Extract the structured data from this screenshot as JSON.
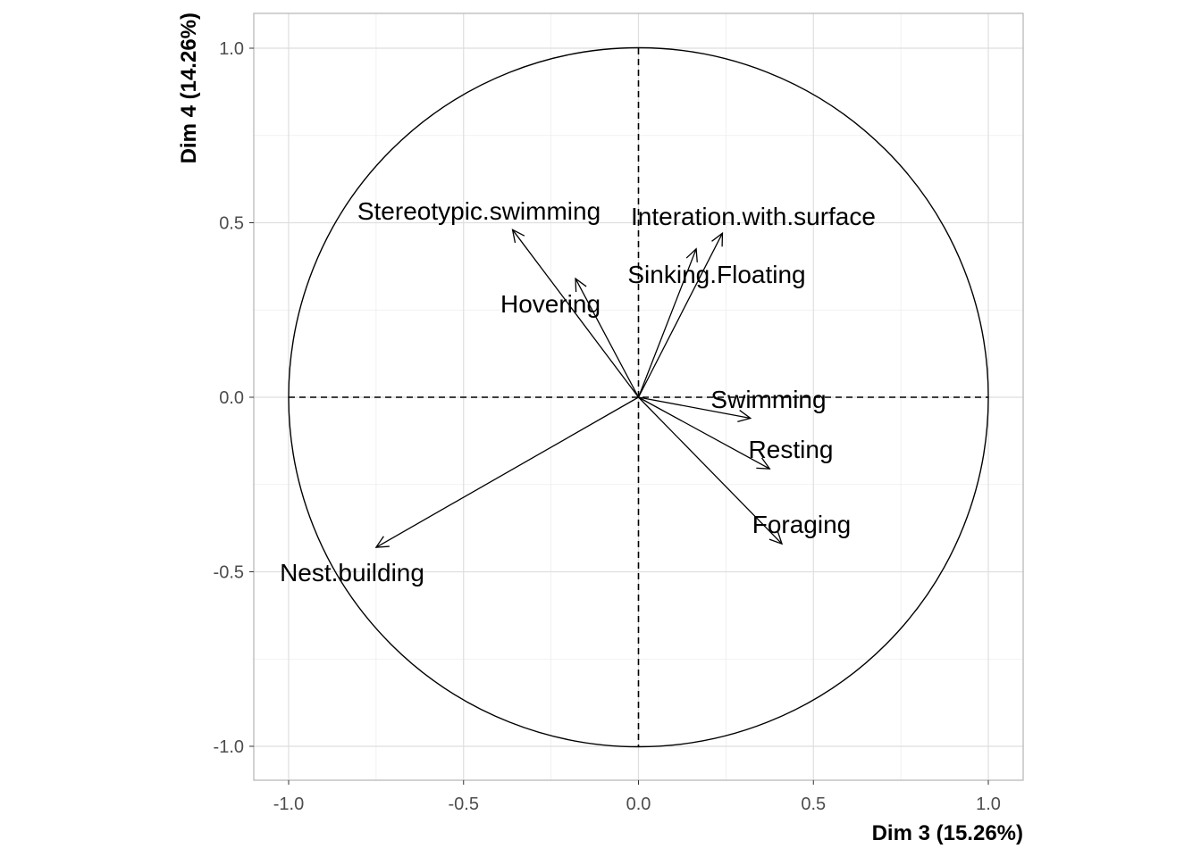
{
  "chart_data": {
    "type": "scatter",
    "subtype": "pca-variable-correlation-circle",
    "xlabel": "Dim 3 (15.26%)",
    "ylabel": "Dim 4 (14.26%)",
    "xlim": [
      -1.1,
      1.1
    ],
    "ylim": [
      -1.1,
      1.1
    ],
    "x_ticks": [
      -1.0,
      -0.5,
      0.0,
      0.5,
      1.0
    ],
    "y_ticks": [
      -1.0,
      -0.5,
      0.0,
      0.5,
      1.0
    ],
    "x_tick_labels": [
      "-1.0",
      "-0.5",
      "0.0",
      "0.5",
      "1.0"
    ],
    "y_tick_labels": [
      "-1.0",
      "-0.5",
      "0.0",
      "0.5",
      "1.0"
    ],
    "grid": true,
    "unit_circle": true,
    "reference_lines": "dashed at x=0 and y=0",
    "variables": [
      {
        "name": "Stereotypic.swimming",
        "x": -0.36,
        "y": 0.48
      },
      {
        "name": "Interation.with.surface",
        "x": 0.24,
        "y": 0.47
      },
      {
        "name": "Sinking.Floating",
        "x": 0.165,
        "y": 0.425
      },
      {
        "name": "Hovering",
        "x": -0.18,
        "y": 0.34
      },
      {
        "name": "Swimming",
        "x": 0.32,
        "y": -0.06
      },
      {
        "name": "Resting",
        "x": 0.375,
        "y": -0.205
      },
      {
        "name": "Foraging",
        "x": 0.41,
        "y": -0.42
      },
      {
        "name": "Nest.building",
        "x": -0.75,
        "y": -0.43
      }
    ],
    "colors": {
      "arrow": "#000000",
      "text": "#000000",
      "tick": "#4d4d4d",
      "panel_border": "#b3b3b3"
    }
  }
}
